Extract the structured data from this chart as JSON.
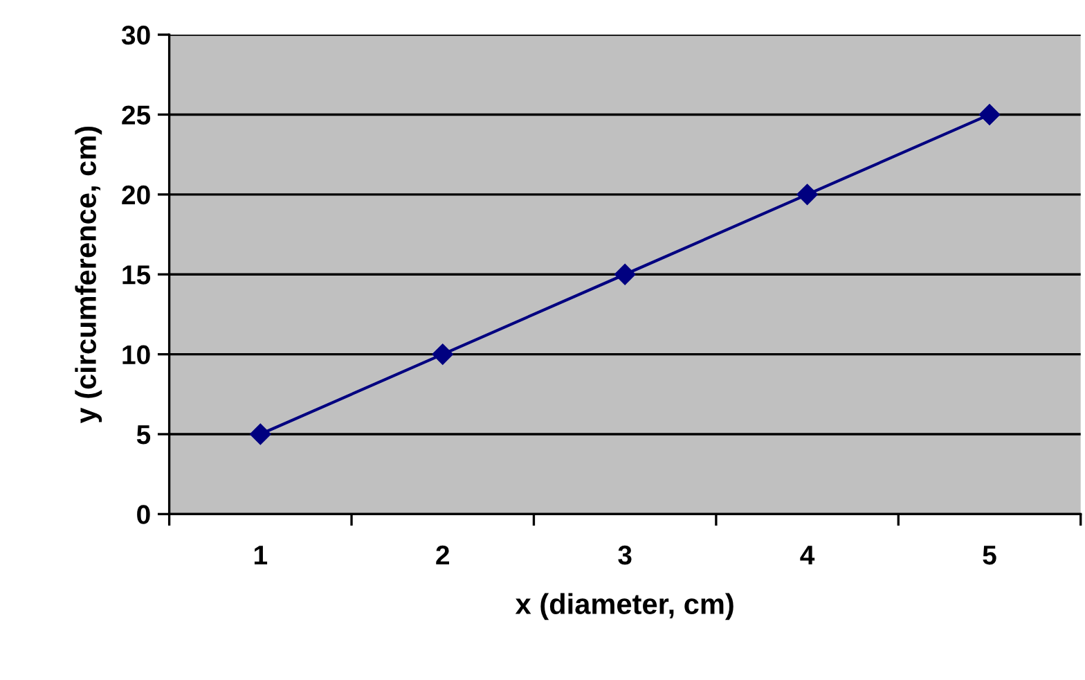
{
  "chart_data": {
    "type": "line",
    "xlabel": "x (diameter, cm)",
    "ylabel": "y (circumference, cm)",
    "categories": [
      "1",
      "2",
      "3",
      "4",
      "5"
    ],
    "series": [
      {
        "color": "#000080",
        "values": [
          5,
          10,
          15,
          20,
          25
        ]
      }
    ],
    "ylim": [
      0,
      30
    ],
    "yticks": [
      0,
      5,
      10,
      15,
      20,
      25,
      30
    ],
    "grid": "y",
    "marker": "diamond",
    "line_style": "solid",
    "legend": false
  }
}
